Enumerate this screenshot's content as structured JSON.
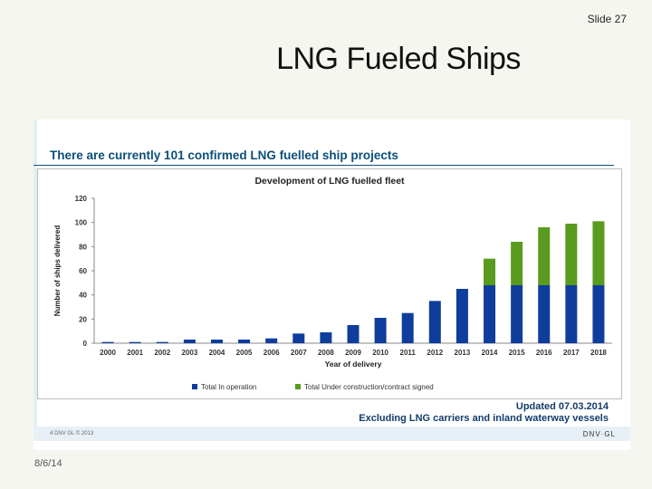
{
  "slide": {
    "number_label": "Slide 27",
    "title": "LNG Fueled Ships",
    "date": "8/6/14"
  },
  "image": {
    "heading": "There are currently 101 confirmed LNG fuelled ship projects",
    "update_line": "Updated 07.03.2014",
    "exclusion_line": "Excluding LNG carriers and inland waterway vessels",
    "footer_left": "4     DNV GL © 2013",
    "footer_right": "DNV·GL"
  },
  "chart_data": {
    "type": "bar",
    "stacked": true,
    "title": "Development of LNG fuelled fleet",
    "xlabel": "Year of delivery",
    "ylabel": "Number of ships delivered",
    "ylim": [
      0,
      120
    ],
    "yticks": [
      0,
      20,
      40,
      60,
      80,
      100,
      120
    ],
    "grid": false,
    "legend_position": "bottom",
    "categories": [
      "2000",
      "2001",
      "2002",
      "2003",
      "2004",
      "2005",
      "2006",
      "2007",
      "2008",
      "2009",
      "2010",
      "2011",
      "2012",
      "2013",
      "2014",
      "2015",
      "2016",
      "2017",
      "2018"
    ],
    "series": [
      {
        "name": "Total In operation",
        "color": "#0f3d9c",
        "values": [
          1,
          1,
          1,
          3,
          3,
          3,
          4,
          8,
          9,
          15,
          21,
          25,
          35,
          45,
          48,
          48,
          48,
          48,
          48
        ]
      },
      {
        "name": "Total Under construction/contract signed",
        "color": "#5a9a1e",
        "values": [
          0,
          0,
          0,
          0,
          0,
          0,
          0,
          0,
          0,
          0,
          0,
          0,
          0,
          0,
          22,
          36,
          48,
          51,
          53
        ]
      }
    ]
  }
}
